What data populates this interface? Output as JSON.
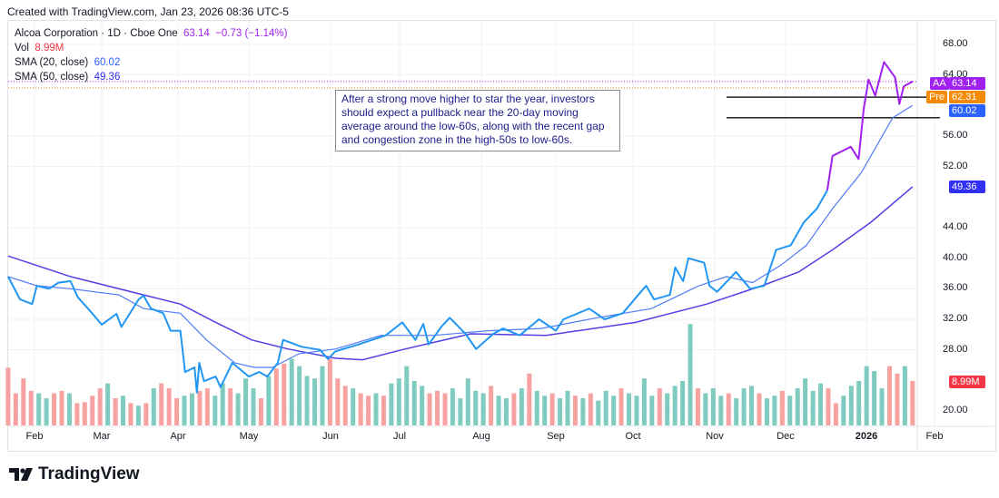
{
  "header": {
    "credit": "Created with TradingView.com, Jan 23, 2026 08:36 UTC-5"
  },
  "legend": {
    "symbol": "Alcoa Corporation · 1D · Cboe One",
    "price": "63.14",
    "change": "−0.73 (−1.14%)",
    "vol_label": "Vol",
    "vol_value": "8.99M",
    "sma20_label": "SMA (20, close)",
    "sma20_value": "60.02",
    "sma50_label": "SMA (50, close)",
    "sma50_value": "49.36"
  },
  "annotation": "After a strong move higher to star the year, investors should expect a pullback near the 20-day moving average around the low-60s, along with the recent gap and congestion zone in the high-50s to low-60s.",
  "price_tags": {
    "aa_label": "AA",
    "aa_value": "63.14",
    "pre_label": "Pre",
    "pre_value": "62.31",
    "sma20": "60.02",
    "sma50": "49.36",
    "volume": "8.99M"
  },
  "colors": {
    "price": "#2196f3",
    "price_recent": "#a020f0",
    "sma20": "#4f7cf7",
    "sma50": "#5040e6",
    "vol_up": "#7fcbbf",
    "vol_down": "#f7a1a1",
    "aa": "#a020f0",
    "pre": "#f58a07",
    "sma20_tag": "#2962ff",
    "sma50_tag": "#2f2ff5",
    "vol_tag": "#f23645"
  },
  "footer": {
    "brand": "TradingView"
  },
  "chart_data": {
    "type": "line",
    "title": "Alcoa Corporation · 1D · Cboe One",
    "ylim": [
      18.5,
      70
    ],
    "y_ticks": [
      "68.00",
      "64.00",
      "56.00",
      "52.00",
      "44.00",
      "40.00",
      "36.00",
      "32.00",
      "28.00",
      "20.00"
    ],
    "x_ticks": [
      "Feb",
      "Mar",
      "Apr",
      "May",
      "Jun",
      "Jul",
      "Aug",
      "Sep",
      "Oct",
      "Nov",
      "Dec",
      "2026",
      "Feb"
    ],
    "grid": true,
    "series": [
      {
        "name": "Alcoa Corporation",
        "points": [
          [
            "2025-01-21",
            37.6
          ],
          [
            "2025-01-26",
            34.6
          ],
          [
            "2025-01-31",
            34.0
          ],
          [
            "2025-02-02",
            36.4
          ],
          [
            "2025-02-07",
            36.0
          ],
          [
            "2025-02-11",
            36.8
          ],
          [
            "2025-02-16",
            37.0
          ],
          [
            "2025-02-19",
            34.9
          ],
          [
            "2025-02-25",
            32.8
          ],
          [
            "2025-03-01",
            31.3
          ],
          [
            "2025-03-07",
            32.7
          ],
          [
            "2025-03-09",
            31.0
          ],
          [
            "2025-03-16",
            34.6
          ],
          [
            "2025-03-18",
            35.1
          ],
          [
            "2025-03-21",
            33.4
          ],
          [
            "2025-03-26",
            32.8
          ],
          [
            "2025-03-29",
            30.5
          ],
          [
            "2025-04-02",
            30.5
          ],
          [
            "2025-04-04",
            25.1
          ],
          [
            "2025-04-08",
            25.7
          ],
          [
            "2025-04-09",
            22.4
          ],
          [
            "2025-04-10",
            26.3
          ],
          [
            "2025-04-12",
            23.9
          ],
          [
            "2025-04-17",
            24.5
          ],
          [
            "2025-04-19",
            23.1
          ],
          [
            "2025-04-24",
            26.3
          ],
          [
            "2025-05-01",
            24.5
          ],
          [
            "2025-05-05",
            25.1
          ],
          [
            "2025-05-08",
            24.5
          ],
          [
            "2025-05-12",
            26.3
          ],
          [
            "2025-05-14",
            29.3
          ],
          [
            "2025-05-21",
            28.4
          ],
          [
            "2025-05-28",
            28.0
          ],
          [
            "2025-05-31",
            26.8
          ],
          [
            "2025-06-03",
            27.8
          ],
          [
            "2025-06-13",
            28.7
          ],
          [
            "2025-06-25",
            29.9
          ],
          [
            "2025-06-30",
            31.1
          ],
          [
            "2025-07-02",
            31.6
          ],
          [
            "2025-07-07",
            29.3
          ],
          [
            "2025-07-10",
            31.4
          ],
          [
            "2025-07-12",
            28.7
          ],
          [
            "2025-07-17",
            31.1
          ],
          [
            "2025-07-20",
            32.2
          ],
          [
            "2025-07-26",
            30.1
          ],
          [
            "2025-07-30",
            28.1
          ],
          [
            "2025-08-06",
            30.1
          ],
          [
            "2025-08-10",
            30.8
          ],
          [
            "2025-08-17",
            29.9
          ],
          [
            "2025-08-25",
            32.0
          ],
          [
            "2025-09-01",
            30.5
          ],
          [
            "2025-09-04",
            32.0
          ],
          [
            "2025-09-14",
            33.4
          ],
          [
            "2025-09-20",
            32.0
          ],
          [
            "2025-09-27",
            32.8
          ],
          [
            "2025-10-04",
            35.6
          ],
          [
            "2025-10-06",
            36.4
          ],
          [
            "2025-10-09",
            34.6
          ],
          [
            "2025-10-15",
            35.2
          ],
          [
            "2025-10-17",
            38.8
          ],
          [
            "2025-10-20",
            37.0
          ],
          [
            "2025-10-22",
            40.0
          ],
          [
            "2025-10-28",
            39.4
          ],
          [
            "2025-10-30",
            36.4
          ],
          [
            "2025-11-02",
            35.6
          ],
          [
            "2025-11-10",
            38.2
          ],
          [
            "2025-11-16",
            36.0
          ],
          [
            "2025-11-22",
            36.4
          ],
          [
            "2025-11-27",
            41.1
          ],
          [
            "2025-12-03",
            41.7
          ],
          [
            "2025-12-08",
            44.7
          ],
          [
            "2025-12-13",
            46.5
          ],
          [
            "2025-12-17",
            48.9
          ],
          [
            "2025-12-19",
            53.4
          ],
          [
            "2025-12-26",
            54.6
          ],
          [
            "2025-12-29",
            53.0
          ],
          [
            "2025-12-31",
            59.6
          ],
          [
            "2026-01-02",
            63.4
          ],
          [
            "2026-01-05",
            61.3
          ],
          [
            "2026-01-09",
            65.7
          ],
          [
            "2026-01-14",
            63.7
          ],
          [
            "2026-01-16",
            60.2
          ],
          [
            "2026-01-18",
            62.5
          ],
          [
            "2026-01-22",
            63.14
          ]
        ]
      },
      {
        "name": "SMA (20, close)",
        "points": [
          [
            "2025-01-21",
            37.6
          ],
          [
            "2025-02-02",
            36.4
          ],
          [
            "2025-02-16",
            36.0
          ],
          [
            "2025-03-08",
            35.2
          ],
          [
            "2025-03-18",
            33.4
          ],
          [
            "2025-04-02",
            32.8
          ],
          [
            "2025-04-13",
            29.3
          ],
          [
            "2025-04-25",
            26.3
          ],
          [
            "2025-05-03",
            25.7
          ],
          [
            "2025-05-10",
            25.7
          ],
          [
            "2025-05-20",
            27.5
          ],
          [
            "2025-06-03",
            28.1
          ],
          [
            "2025-06-23",
            29.9
          ],
          [
            "2025-07-14",
            29.9
          ],
          [
            "2025-08-04",
            30.5
          ],
          [
            "2025-08-26",
            30.8
          ],
          [
            "2025-09-17",
            32.2
          ],
          [
            "2025-10-08",
            33.4
          ],
          [
            "2025-10-26",
            36.4
          ],
          [
            "2025-11-06",
            37.6
          ],
          [
            "2025-11-17",
            36.8
          ],
          [
            "2025-11-29",
            39.1
          ],
          [
            "2025-12-09",
            41.7
          ],
          [
            "2025-12-19",
            46.5
          ],
          [
            "2025-12-30",
            51.2
          ],
          [
            "2026-01-13",
            58.4
          ],
          [
            "2026-01-22",
            60.02
          ]
        ]
      },
      {
        "name": "SMA (50, close)",
        "points": [
          [
            "2025-01-21",
            40.3
          ],
          [
            "2025-02-16",
            37.6
          ],
          [
            "2025-03-18",
            35.2
          ],
          [
            "2025-04-02",
            34.0
          ],
          [
            "2025-04-17",
            31.6
          ],
          [
            "2025-05-02",
            29.3
          ],
          [
            "2025-05-16",
            28.1
          ],
          [
            "2025-06-03",
            26.9
          ],
          [
            "2025-06-15",
            26.7
          ],
          [
            "2025-07-03",
            28.1
          ],
          [
            "2025-07-28",
            30.1
          ],
          [
            "2025-08-28",
            29.9
          ],
          [
            "2025-10-02",
            31.6
          ],
          [
            "2025-10-29",
            34.0
          ],
          [
            "2025-11-21",
            36.4
          ],
          [
            "2025-12-06",
            38.2
          ],
          [
            "2025-12-19",
            41.1
          ],
          [
            "2026-01-03",
            44.7
          ],
          [
            "2026-01-22",
            49.36
          ]
        ]
      }
    ],
    "horizontal_levels": [
      61.1,
      58.4
    ],
    "volume": {
      "unit": "M",
      "values": [
        11.7,
        6.5,
        9.5,
        7,
        6.5,
        5.5,
        6.5,
        7,
        6.5,
        4.5,
        4.7,
        6,
        7.5,
        8.5,
        5.5,
        6,
        4.5,
        4,
        4.5,
        7.5,
        8.5,
        7.5,
        5.5,
        6,
        6.5,
        7,
        7.5,
        6,
        8.5,
        7.5,
        6.5,
        9.5,
        7.5,
        5.5,
        10,
        11.5,
        12.5,
        13.5,
        12,
        10,
        9.5,
        12,
        13.5,
        9.5,
        8,
        7.5,
        6.5,
        6,
        6.5,
        6,
        8.5,
        9.5,
        12,
        9,
        8,
        6.5,
        7,
        6.5,
        7.5,
        5.5,
        9.5,
        7,
        6.5,
        8,
        6,
        5.5,
        6.5,
        7.5,
        10.5,
        7,
        6,
        6.5,
        5.5,
        7,
        6,
        5.5,
        6.5,
        5,
        7,
        6,
        7.5,
        6.5,
        6,
        9.5,
        6,
        7.5,
        6.5,
        8,
        9,
        20.5,
        7.5,
        6.5,
        7.5,
        6,
        6.5,
        5.5,
        7.5,
        8,
        6.5,
        5.5,
        6,
        7,
        6,
        7.5,
        9.5,
        7,
        8.5,
        7.5,
        4.5,
        6,
        8,
        9,
        12,
        11,
        7.5,
        12,
        10.5,
        12,
        8.99
      ],
      "up": [
        0,
        0,
        0,
        0,
        1,
        1,
        0,
        0,
        1,
        0,
        0,
        0,
        0,
        1,
        0,
        1,
        0,
        1,
        0,
        1,
        0,
        0,
        0,
        1,
        1,
        0,
        0,
        1,
        1,
        0,
        1,
        1,
        1,
        0,
        1,
        0,
        0,
        1,
        1,
        1,
        1,
        1,
        0,
        0,
        0,
        1,
        0,
        0,
        1,
        0,
        1,
        1,
        1,
        1,
        1,
        0,
        0,
        0,
        1,
        1,
        1,
        1,
        1,
        0,
        1,
        1,
        0,
        1,
        0,
        1,
        1,
        0,
        1,
        1,
        0,
        1,
        0,
        1,
        1,
        1,
        0,
        1,
        1,
        1,
        1,
        0,
        1,
        1,
        1,
        1,
        0,
        1,
        1,
        1,
        0,
        1,
        1,
        1,
        0,
        1,
        1,
        0,
        1,
        1,
        1,
        1,
        1,
        0,
        0,
        1,
        1,
        1,
        1,
        1,
        1,
        0,
        0,
        1,
        0
      ]
    }
  }
}
